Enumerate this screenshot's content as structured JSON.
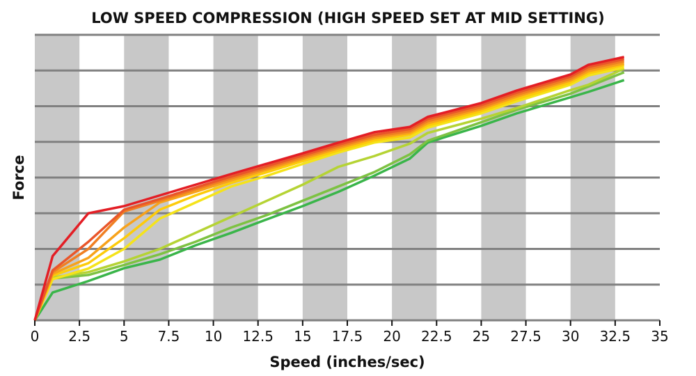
{
  "chart_data": {
    "type": "line",
    "title": "LOW SPEED COMPRESSION (HIGH SPEED SET AT MID SETTING)",
    "xlabel": "Speed (inches/sec)",
    "ylabel": "Force",
    "xlim": [
      0,
      35
    ],
    "ylim": [
      0,
      8
    ],
    "x_ticks": [
      "0",
      "2.5",
      "5",
      "7.5",
      "10",
      "12.5",
      "15",
      "17.5",
      "20",
      "22.5",
      "25",
      "27.5",
      "30",
      "32.5",
      "35"
    ],
    "grid": "horizontal",
    "shaded_bands": [
      [
        0,
        2.5
      ],
      [
        5,
        7.5
      ],
      [
        10,
        12.5
      ],
      [
        15,
        17.5
      ],
      [
        20,
        22.5
      ],
      [
        25,
        27.5
      ],
      [
        30,
        32.5
      ]
    ],
    "colors": {
      "band": "#c8c8c8",
      "grid": "#808080"
    },
    "x": [
      0,
      1,
      3,
      5,
      7,
      9,
      11,
      13,
      15,
      17,
      19,
      21,
      22,
      25,
      27,
      30,
      31,
      33
    ],
    "series": [
      {
        "color": "#3ab54a",
        "values": [
          0,
          0.78,
          1.1,
          1.46,
          1.7,
          2.1,
          2.45,
          2.83,
          3.2,
          3.6,
          4.05,
          4.53,
          4.98,
          5.45,
          5.8,
          6.25,
          6.4,
          6.73
        ]
      },
      {
        "color": "#7dc242",
        "values": [
          0,
          1.17,
          1.27,
          1.55,
          1.85,
          2.2,
          2.6,
          2.95,
          3.35,
          3.75,
          4.15,
          4.65,
          5.03,
          5.55,
          5.9,
          6.35,
          6.55,
          6.95
        ]
      },
      {
        "color": "#b5d334",
        "values": [
          0,
          1.2,
          1.35,
          1.65,
          2.0,
          2.45,
          2.9,
          3.35,
          3.8,
          4.3,
          4.6,
          4.95,
          5.25,
          5.65,
          5.95,
          6.45,
          6.6,
          7.05
        ]
      },
      {
        "color": "#f5e31a",
        "values": [
          0,
          1.15,
          1.45,
          2.0,
          2.85,
          3.3,
          3.75,
          4.05,
          4.38,
          4.7,
          4.98,
          5.12,
          5.4,
          5.8,
          6.14,
          6.6,
          6.86,
          7.08
        ]
      },
      {
        "color": "#fdcb0a",
        "values": [
          0,
          1.25,
          1.6,
          2.3,
          3.1,
          3.5,
          3.85,
          4.15,
          4.46,
          4.76,
          5.04,
          5.2,
          5.46,
          5.86,
          6.2,
          6.66,
          6.92,
          7.15
        ]
      },
      {
        "color": "#f7a21b",
        "values": [
          0,
          1.3,
          1.75,
          2.6,
          3.3,
          3.6,
          3.92,
          4.22,
          4.52,
          4.82,
          5.1,
          5.25,
          5.52,
          5.92,
          6.27,
          6.72,
          6.98,
          7.2
        ]
      },
      {
        "color": "#f07f22",
        "values": [
          0,
          1.35,
          2.0,
          3.05,
          3.35,
          3.67,
          3.98,
          4.27,
          4.57,
          4.87,
          5.15,
          5.3,
          5.58,
          5.97,
          6.32,
          6.77,
          7.04,
          7.26
        ]
      },
      {
        "color": "#e9562a",
        "values": [
          0,
          1.4,
          2.2,
          3.1,
          3.4,
          3.72,
          4.03,
          4.32,
          4.62,
          4.92,
          5.2,
          5.36,
          5.64,
          6.03,
          6.38,
          6.83,
          7.1,
          7.32
        ]
      },
      {
        "color": "#e31e25",
        "values": [
          0,
          1.8,
          3.0,
          3.2,
          3.5,
          3.8,
          4.1,
          4.39,
          4.68,
          4.98,
          5.27,
          5.42,
          5.7,
          6.09,
          6.44,
          6.89,
          7.16,
          7.38
        ]
      }
    ]
  }
}
